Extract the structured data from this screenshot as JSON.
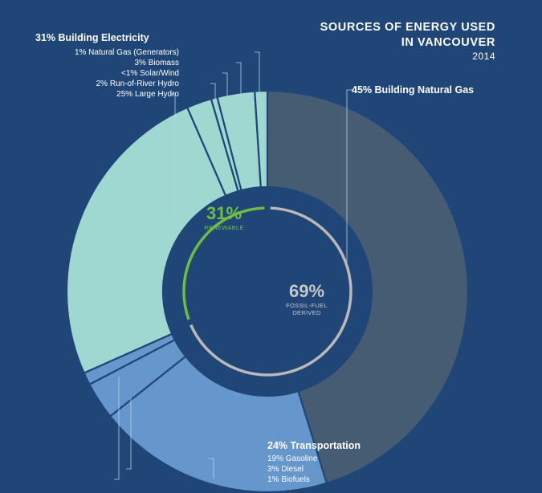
{
  "header": {
    "title_line1": "SOURCES OF ENERGY USED",
    "title_line2": "IN VANCOUVER",
    "year": "2014"
  },
  "groups": {
    "building_electricity": "31% Building Electricity",
    "building_natural_gas": "45% Building Natural Gas",
    "transportation": "24% Transportation"
  },
  "breakdown": {
    "electricity": [
      "1% Natural Gas (Generators)",
      "3% Biomass",
      "<1% Solar/Wind",
      "2% Run-of-River Hydro",
      "25% Large Hydro"
    ],
    "transportation": [
      "19% Gasoline",
      "3% Diesel",
      "1% Biofuels"
    ]
  },
  "center": {
    "renewable_pct": "31%",
    "renewable_label": "RENEWABLE",
    "fossil_pct": "69%",
    "fossil_label_1": "FOSSIL-FUEL",
    "fossil_label_2": "DERIVED"
  },
  "colors": {
    "background": "#1f4677",
    "natural_gas": "#465c73",
    "electricity": "#9fd7d1",
    "transportation": "#6596cc",
    "renewable_ring": "#6fbe44",
    "fossil_ring": "#b9b9b9",
    "leader": "#b6d3e6"
  },
  "chart_data": {
    "type": "pie",
    "variant": "donut",
    "title": "SOURCES OF ENERGY USED IN VANCOUVER",
    "subtitle": "2014",
    "unit": "%",
    "categories": [
      "Building Natural Gas",
      "Gasoline",
      "Diesel",
      "Biofuels",
      "Large Hydro",
      "Run-of-River Hydro",
      "Solar/Wind",
      "Biomass",
      "Natural Gas (Generators)"
    ],
    "values": [
      45,
      19,
      3,
      1,
      25,
      2,
      0.5,
      3,
      1
    ],
    "groups": [
      {
        "name": "Building Natural Gas",
        "value": 45,
        "members": [
          "Building Natural Gas"
        ]
      },
      {
        "name": "Transportation",
        "value": 24,
        "members": [
          "Gasoline",
          "Diesel",
          "Biofuels"
        ]
      },
      {
        "name": "Building Electricity",
        "value": 31,
        "members": [
          "Large Hydro",
          "Run-of-River Hydro",
          "Solar/Wind",
          "Biomass",
          "Natural Gas (Generators)"
        ]
      }
    ],
    "inner_ring": [
      {
        "name": "RENEWABLE",
        "value": 31
      },
      {
        "name": "FOSSIL-FUEL DERIVED",
        "value": 69
      }
    ]
  }
}
